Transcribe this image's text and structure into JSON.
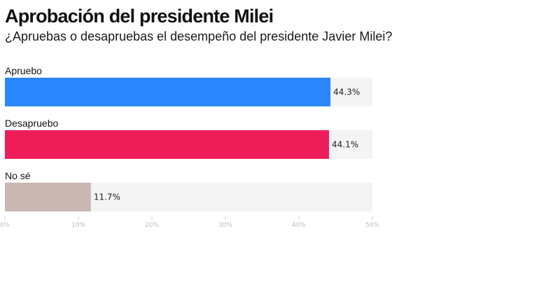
{
  "chart_data": {
    "type": "bar",
    "orientation": "horizontal",
    "title": "Aprobación del presidente Milei",
    "subtitle": "¿Apruebas o desapruebas el desempeño del presidente Javier Milei?",
    "categories": [
      "Apruebo",
      "Desapruebo",
      "No sé"
    ],
    "values": [
      44.3,
      44.1,
      11.7
    ],
    "value_labels": [
      "44.3%",
      "44.1%",
      "11.7%"
    ],
    "colors": [
      "#2a86ff",
      "#ee1d5a",
      "#c8b8b1"
    ],
    "track_color": "#f4f4f4",
    "xlim": [
      0,
      50
    ],
    "ticks": [
      0,
      10,
      20,
      30,
      40,
      50
    ],
    "tick_labels": [
      "0%",
      "10%",
      "20%",
      "30%",
      "40%",
      "50%"
    ],
    "grid": false,
    "legend": "none"
  }
}
